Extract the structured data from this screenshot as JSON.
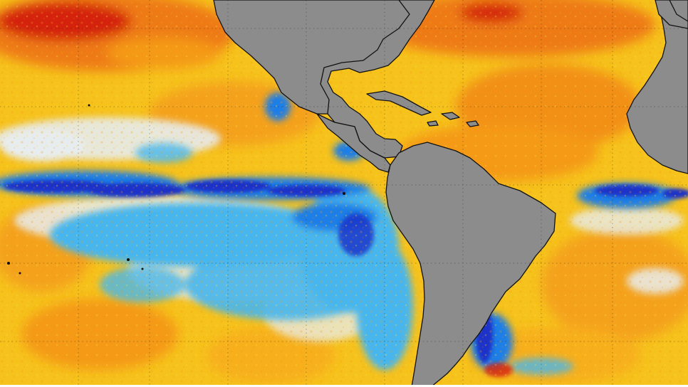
{
  "map": {
    "kind": "sea-surface-temperature-anomaly",
    "projection": "equirectangular",
    "graticule": {
      "style": "dotted",
      "color": "#1a1a1a"
    },
    "land_color": "#8c8c8c",
    "coast_color": "#111111",
    "palette": {
      "warm_strong": "#d4200a",
      "warm": "#ee7a12",
      "warm_mid": "#f7a81e",
      "warm_light": "#f9d21a",
      "neutral": "#e7ecef",
      "cool_light": "#47b6ee",
      "cool": "#1a7ee6",
      "cool_strong": "#1a30c8"
    },
    "features": {
      "landmasses": [
        "north-america",
        "central-america",
        "south-america",
        "caribbean-islands",
        "africa",
        "cuba"
      ],
      "anomaly_regions": [
        "north-pacific-warm-anomaly",
        "equatorial-pacific-cold-tongue",
        "north-atlantic-warm-anomaly",
        "equatorial-atlantic-cold-tongue",
        "south-atlantic-cold-patch"
      ]
    }
  }
}
